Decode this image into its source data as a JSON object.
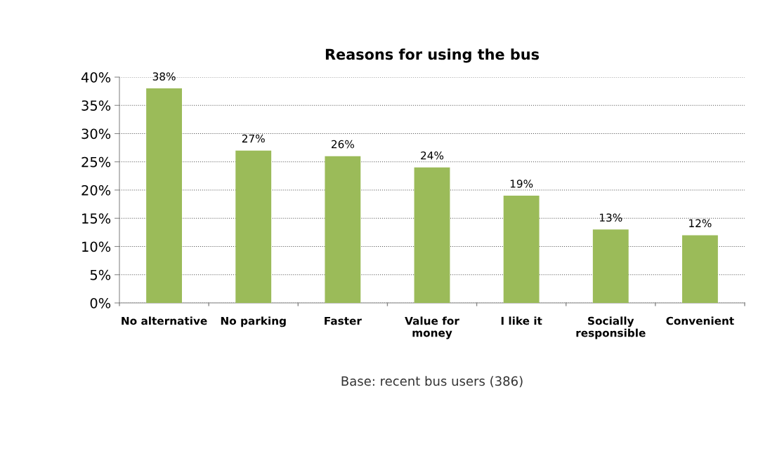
{
  "chart_data": {
    "type": "bar",
    "title": "Reasons for using the bus",
    "categories": [
      "No alternative",
      "No parking",
      "Faster",
      "Value for\nmoney",
      "I like it",
      "Socially\nresponsible",
      "Convenient"
    ],
    "values": [
      38,
      27,
      26,
      24,
      19,
      13,
      12
    ],
    "value_labels": [
      "38%",
      "27%",
      "26%",
      "24%",
      "19%",
      "13%",
      "12%"
    ],
    "color": "#9bbb59",
    "ylim": [
      0,
      40
    ],
    "yticks": [
      {
        "value": 0,
        "label": "0%"
      },
      {
        "value": 5,
        "label": "5%"
      },
      {
        "value": 10,
        "label": "10%"
      },
      {
        "value": 15,
        "label": "15%"
      },
      {
        "value": 20,
        "label": "20%"
      },
      {
        "value": 25,
        "label": "25%"
      },
      {
        "value": 30,
        "label": "30%"
      },
      {
        "value": 35,
        "label": "35%"
      },
      {
        "value": 40,
        "label": "40%"
      }
    ],
    "grid": "y",
    "annotations": [
      "Base: recent bus users (386)"
    ]
  }
}
